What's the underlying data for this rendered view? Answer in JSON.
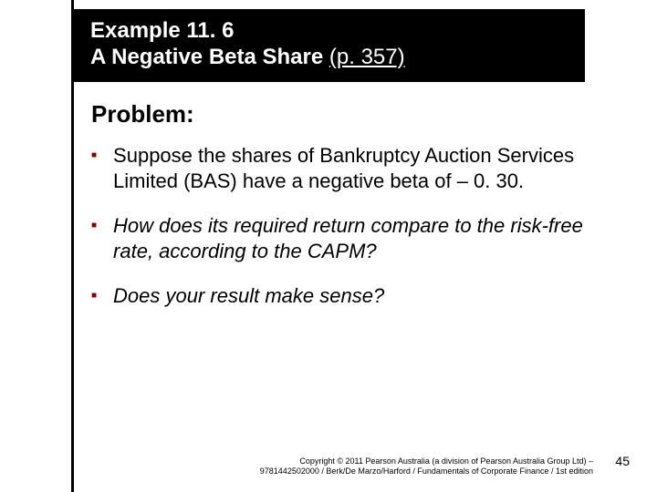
{
  "title": {
    "line1": "Example 11. 6",
    "line2_main": "A Negative Beta Share ",
    "line2_pageref": "(p. 357)"
  },
  "problem_heading": "Problem:",
  "bullets": [
    {
      "text": "Suppose the shares of Bankruptcy Auction Services Limited (BAS) have a negative beta of – 0. 30.",
      "italic": false
    },
    {
      "text": "How does its required return compare to the risk-free rate, according to the CAPM?",
      "italic": true
    },
    {
      "text": "Does your result make sense?",
      "italic": true
    }
  ],
  "copyright": {
    "line1": "Copyright © 2011 Pearson Australia (a division of Pearson Australia Group Ltd) –",
    "line2": "9781442502000 / Berk/De Marzo/Harford / Fundamentals of Corporate Finance / 1st edition"
  },
  "page_number": "45",
  "colors": {
    "title_bg": "#000000",
    "title_text": "#ffffff",
    "bullet_marker": "#8b0000",
    "body_text": "#000000",
    "background": "#ffffff"
  }
}
